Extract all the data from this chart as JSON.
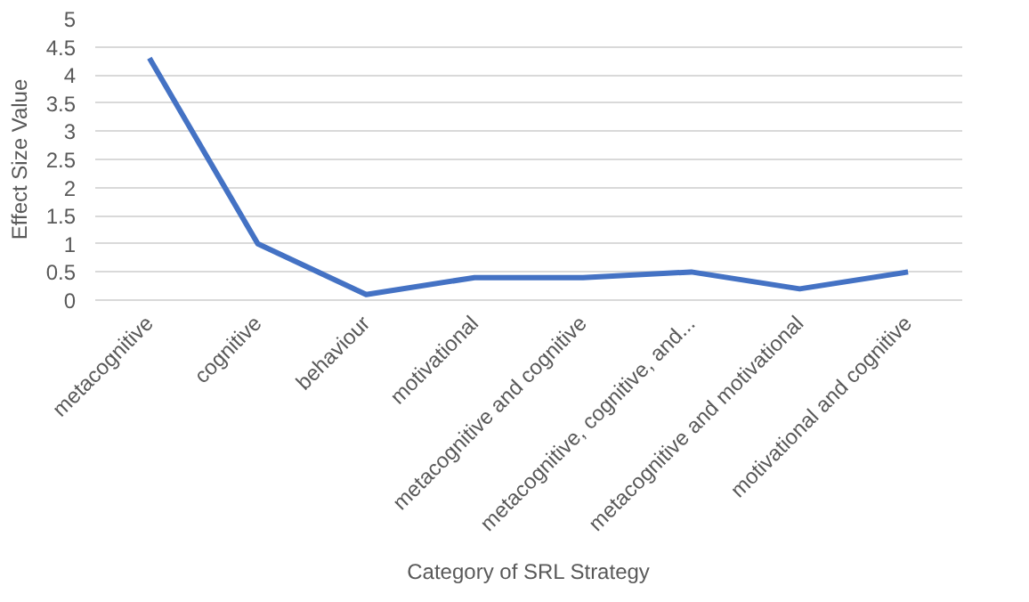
{
  "chart_data": {
    "type": "line",
    "xlabel": "Category of SRL Strategy",
    "ylabel": "Effect Size Value",
    "categories": [
      "metacognitive",
      "cognitive",
      "behaviour",
      "motivational",
      "metacognitive and cognitive",
      "metacognitive, cognitive, and...",
      "metacognitive and motivational",
      "motivational and cognitive"
    ],
    "series": [
      {
        "color": "#4472c4",
        "values": [
          4.3,
          1.0,
          0.1,
          0.4,
          0.4,
          0.5,
          0.2,
          0.5
        ]
      }
    ],
    "ylim": [
      0,
      5
    ],
    "yticks": [
      0,
      0.5,
      1,
      1.5,
      2,
      2.5,
      3,
      3.5,
      4,
      4.5,
      5
    ],
    "grid": "y",
    "line_style": "solid"
  }
}
